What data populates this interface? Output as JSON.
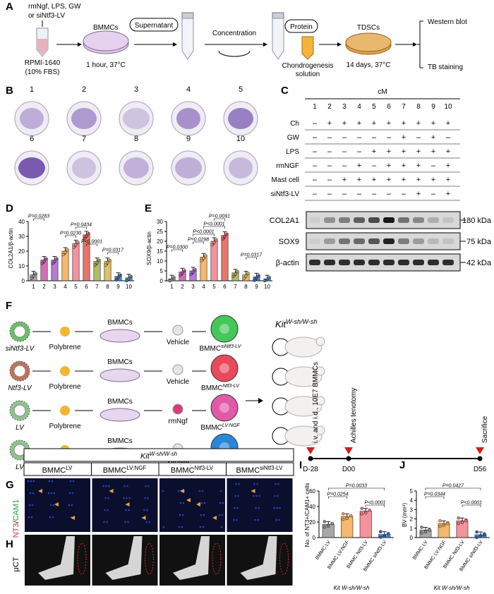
{
  "panels": [
    "A",
    "B",
    "C",
    "D",
    "E",
    "F",
    "G",
    "H",
    "I",
    "J"
  ],
  "panelA": {
    "treat": [
      "rmNgf, LPS, GW",
      "or siNtf3-LV"
    ],
    "medium": [
      "RPMI-1640",
      "(10% FBS)"
    ],
    "bmmc": "BMMCs",
    "bmmc_cond": "1 hour, 37°C",
    "supernatant": "Supernatant",
    "concentration": "Concentration",
    "protein": "Protein",
    "chondro": [
      "Chondrogenesis",
      "solution"
    ],
    "tdsc": "TDSCs",
    "tdsc_cond": "14 days, 37°C",
    "outputs": [
      "Western blot",
      "TB staining"
    ]
  },
  "panelB": {
    "wells": [
      "1",
      "2",
      "3",
      "4",
      "5",
      "6",
      "7",
      "8",
      "9",
      "10"
    ]
  },
  "panelC": {
    "header": "cM",
    "lanes": [
      "1",
      "2",
      "3",
      "4",
      "5",
      "6",
      "7",
      "8",
      "9",
      "10"
    ],
    "rows": [
      {
        "label": "Ch",
        "values": [
          "–",
          "+",
          "+",
          "+",
          "+",
          "+",
          "+",
          "+",
          "+",
          "+"
        ]
      },
      {
        "label": "GW",
        "values": [
          "–",
          "–",
          "–",
          "–",
          "–",
          "–",
          "+",
          "–",
          "+",
          "–"
        ]
      },
      {
        "label": "LPS",
        "values": [
          "–",
          "–",
          "–",
          "–",
          "+",
          "+",
          "+",
          "+",
          "+",
          "+"
        ]
      },
      {
        "label": "rmNGF",
        "values": [
          "–",
          "–",
          "–",
          "+",
          "–",
          "+",
          "+",
          "+",
          "–",
          "+"
        ]
      },
      {
        "label": "Mast cell",
        "values": [
          "–",
          "–",
          "+",
          "+",
          "+",
          "+",
          "+",
          "+",
          "+",
          "+"
        ]
      },
      {
        "label": "siNtf3-LV",
        "values": [
          "–",
          "–",
          "–",
          "–",
          "–",
          "–",
          "–",
          "+",
          "–",
          "+"
        ]
      }
    ],
    "blots": [
      {
        "name": "COL2A1",
        "kda": "180 kDa",
        "intensity": [
          0.05,
          0.35,
          0.45,
          0.6,
          0.7,
          0.95,
          0.5,
          0.4,
          0.2,
          0.1
        ]
      },
      {
        "name": "SOX9",
        "kda": "75 kDa",
        "intensity": [
          0.05,
          0.3,
          0.5,
          0.55,
          0.65,
          0.9,
          0.45,
          0.3,
          0.15,
          0.1
        ]
      },
      {
        "name": "β-actin",
        "kda": "42 kDa",
        "intensity": [
          0.85,
          0.85,
          0.85,
          0.85,
          0.85,
          0.85,
          0.85,
          0.85,
          0.85,
          0.85
        ]
      }
    ]
  },
  "panelD": {
    "ylabel": "COL2A1/β-actin",
    "ylim": [
      0,
      40
    ],
    "yticks": [
      "0",
      "10",
      "20",
      "30",
      "40"
    ],
    "categories": [
      "1",
      "2",
      "3",
      "4",
      "5",
      "6",
      "7",
      "8",
      "9",
      "10"
    ],
    "values": [
      4,
      14,
      14,
      20,
      25,
      31,
      13,
      13,
      3,
      2
    ],
    "pvals": [
      "P=0.0283",
      "P=0.0434",
      "P=0.0230",
      "P<0.0001",
      "P=0.0317"
    ]
  },
  "panelE": {
    "ylabel": "SOX9/β-actin",
    "ylim": [
      0,
      30
    ],
    "yticks": [
      "0",
      "5",
      "10",
      "15",
      "20",
      "25",
      "30"
    ],
    "categories": [
      "1",
      "2",
      "3",
      "4",
      "5",
      "6",
      "7",
      "8",
      "9",
      "10"
    ],
    "values": [
      1,
      4.5,
      5,
      12,
      20,
      23,
      4,
      3,
      2,
      1
    ],
    "pvals": [
      "P=0.0091",
      "P<0.0001",
      "P<0.0001",
      "P=0.0298",
      "P=0.0300",
      "P=0.0317"
    ]
  },
  "panelF": {
    "rows": [
      {
        "vector": "siNtf3-LV",
        "agent": "Vehicle",
        "product": "BMMC",
        "sup": "siNtf3-LV",
        "color": "#44c85a"
      },
      {
        "vector": "Ntf3-LV",
        "agent": "Vehicle",
        "product": "BMMC",
        "sup": "Ntf3-LV",
        "color": "#e84a5c"
      },
      {
        "vector": "LV",
        "agent": "rmNgf",
        "product": "BMMC",
        "sup": "LV:NGF",
        "color": "#e05aa8"
      },
      {
        "vector": "LV",
        "agent": "Vehicle",
        "product": "BMMC",
        "sup": "LV",
        "color": "#2b86d8"
      }
    ],
    "polybrene": "Polybrene",
    "bmmcs": "BMMCs",
    "mouse": "Kit",
    "mouse_sup": "W-sh/W-sh",
    "timeline": {
      "events": [
        "i.v. and i.d., 10E7 BMMCs",
        "Achilles tenotomy",
        "Sacrifice"
      ],
      "days": [
        "D-28",
        "D00",
        "D56"
      ]
    }
  },
  "panelGH": {
    "strain": "Kit",
    "strain_sup": "W-sh/W-sh",
    "groups": [
      {
        "base": "BMMC",
        "sup": "LV"
      },
      {
        "base": "BMMC",
        "sup": "LV:NGF"
      },
      {
        "base": "BMMC",
        "sup": "Ntf3-LV"
      },
      {
        "base": "BMMC",
        "sup": "siNtf3-LV"
      }
    ],
    "stain": [
      "NT3",
      "/",
      "CAM1"
    ],
    "uct": "μCT"
  },
  "panelI": {
    "ylabel": "No. of NT3+/CAM1+ cells",
    "ylim": [
      0,
      60
    ],
    "yticks": [
      "0",
      "20",
      "40",
      "60"
    ],
    "categories": [
      "BMMC LV",
      "BMMC LV:NGF",
      "BMMC Ntf3-LV",
      "BMMC siNtf3-LV"
    ],
    "values": [
      17,
      27,
      34,
      4
    ],
    "colors": [
      "#8a8a8a",
      "#f2a03c",
      "#ef6f7c",
      "#2a5fb8"
    ],
    "pvals": [
      "P=0.0033",
      "P=0.0254",
      "P<0.0001"
    ],
    "strain": "Kit W-sh/W-sh"
  },
  "panelJ": {
    "ylabel": "BV (mm³)",
    "ylim": [
      0,
      5
    ],
    "yticks": [
      "0",
      "1",
      "2",
      "3",
      "4",
      "5"
    ],
    "categories": [
      "BMMC LV",
      "BMMC LV:NGF",
      "BMMC Ntf3-LV",
      "BMMC siNtf3-LV"
    ],
    "values": [
      0.8,
      1.5,
      1.8,
      0.3
    ],
    "colors": [
      "#8a8a8a",
      "#f2a03c",
      "#ef6f7c",
      "#2a5fb8"
    ],
    "pvals": [
      "P=0.0427",
      "P=0.0344",
      "P<0.0001"
    ],
    "strain": "Kit W-sh/W-sh"
  }
}
